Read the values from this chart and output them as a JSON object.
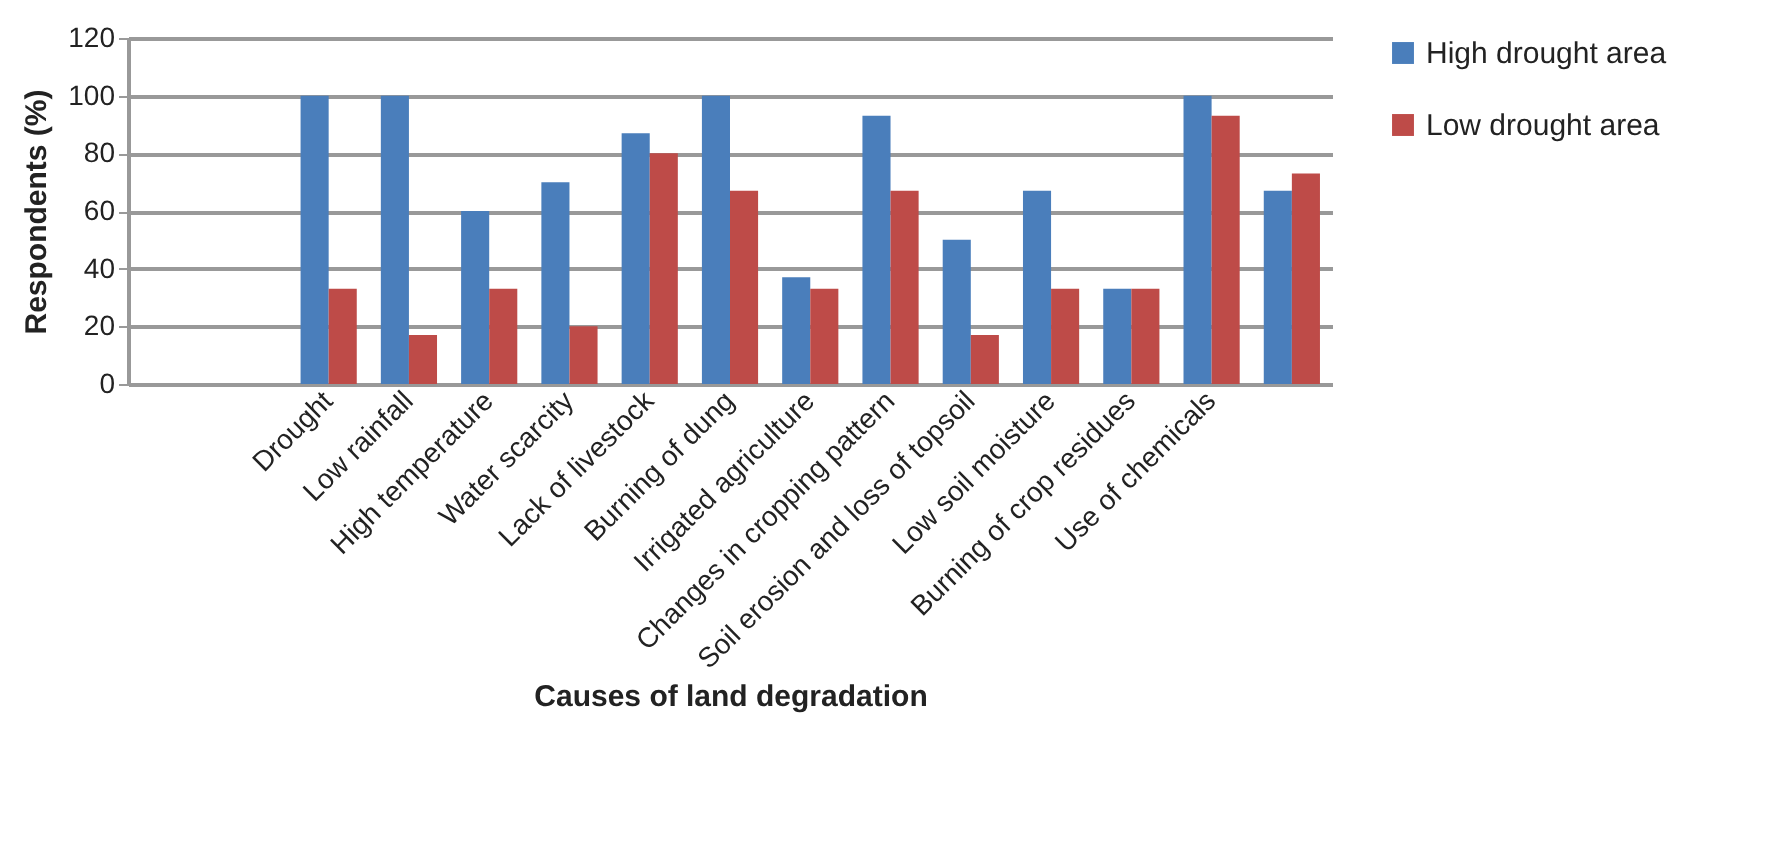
{
  "chart_data": {
    "type": "bar",
    "xlabel": "Causes of land degradation",
    "ylabel": "Respondents (%)",
    "categories": [
      null,
      null,
      "Drought",
      "Low rainfall",
      "High temperature",
      "Water scarcity",
      "Lack of livestock",
      "Burning of dung",
      "Irrigated agriculture",
      "Changes in cropping pattern",
      "Soil erosion and loss of topsoil",
      "Low soil moisture",
      "Burning of crop residues",
      "Use of chemicals",
      null
    ],
    "series": [
      {
        "name": "High drought area",
        "color": "#4a7ebb",
        "values": [
          null,
          null,
          100,
          100,
          60,
          70,
          87,
          100,
          37,
          93,
          50,
          67,
          33,
          100,
          67
        ]
      },
      {
        "name": "Low drought area",
        "color": "#be4b48",
        "values": [
          null,
          null,
          33,
          17,
          33,
          20,
          80,
          67,
          33,
          67,
          17,
          33,
          33,
          93,
          73
        ]
      }
    ],
    "ylim": [
      0,
      120
    ],
    "yticks": [
      0,
      20,
      40,
      60,
      80,
      100,
      120
    ],
    "grid": "y",
    "legend": "right"
  }
}
